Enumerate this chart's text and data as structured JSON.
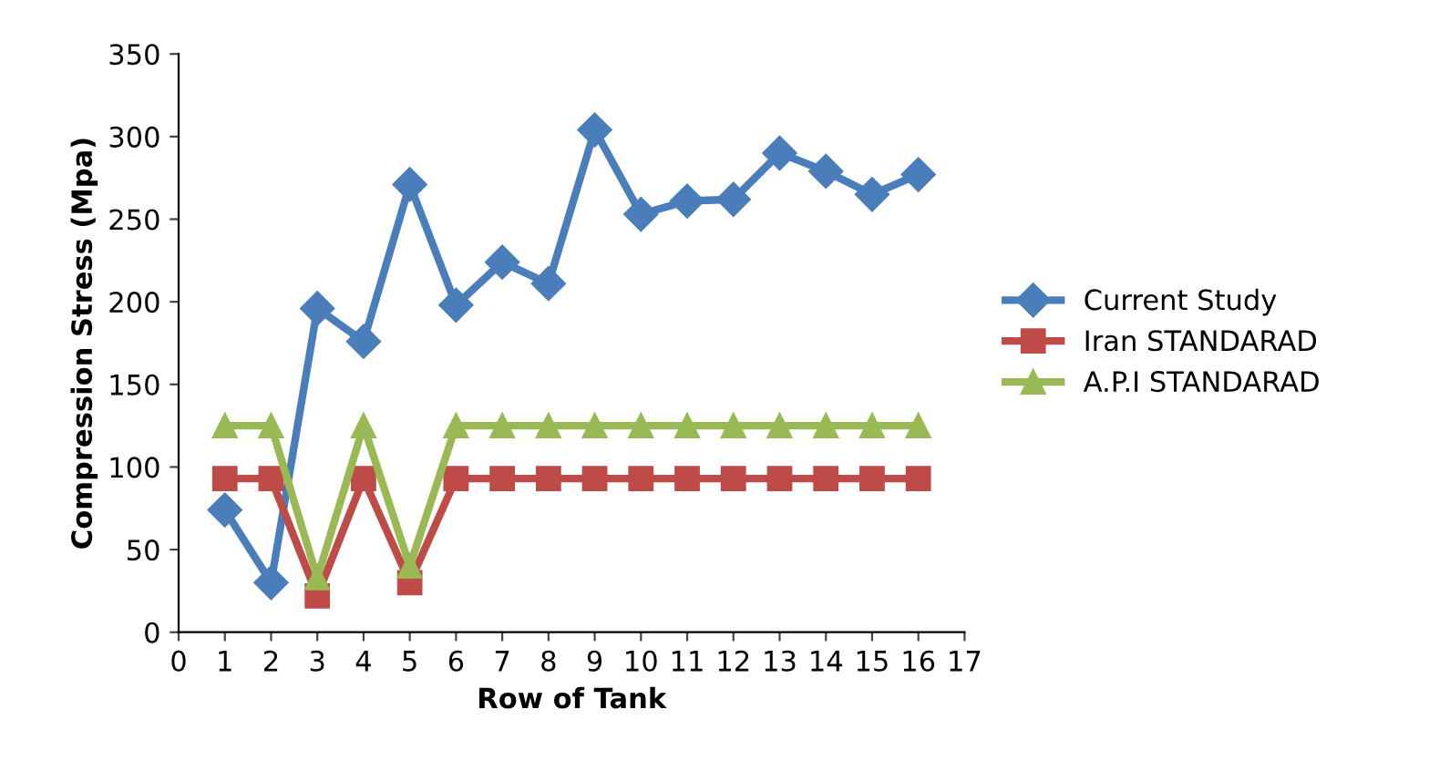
{
  "chart_data": {
    "type": "line",
    "xlabel": "Row of Tank",
    "ylabel": "Compression Stress (Mpa)",
    "x": [
      1,
      2,
      3,
      4,
      5,
      6,
      7,
      8,
      9,
      10,
      11,
      12,
      13,
      14,
      15,
      16
    ],
    "xlim": [
      0,
      17
    ],
    "xticks": [
      0,
      1,
      2,
      3,
      4,
      5,
      6,
      7,
      8,
      9,
      10,
      11,
      12,
      13,
      14,
      15,
      16,
      17
    ],
    "ylim": [
      0,
      350
    ],
    "yticks": [
      0,
      50,
      100,
      150,
      200,
      250,
      300,
      350
    ],
    "grid": false,
    "legend": "right",
    "series": [
      {
        "name": "Current Study",
        "color": "#4a7ebb",
        "marker": "diamond",
        "values": [
          74,
          30,
          196,
          176,
          271,
          198,
          224,
          211,
          304,
          253,
          261,
          262,
          290,
          279,
          265,
          277
        ]
      },
      {
        "name": "Iran STANDARAD",
        "color": "#be4b48",
        "marker": "square",
        "values": [
          93,
          93,
          22,
          93,
          30,
          93,
          93,
          93,
          93,
          93,
          93,
          93,
          93,
          93,
          93,
          93
        ]
      },
      {
        "name": "A.P.I STANDARAD",
        "color": "#98b954",
        "marker": "triangle",
        "values": [
          125,
          125,
          33,
          125,
          40,
          125,
          125,
          125,
          125,
          125,
          125,
          125,
          125,
          125,
          125,
          125
        ]
      }
    ]
  }
}
